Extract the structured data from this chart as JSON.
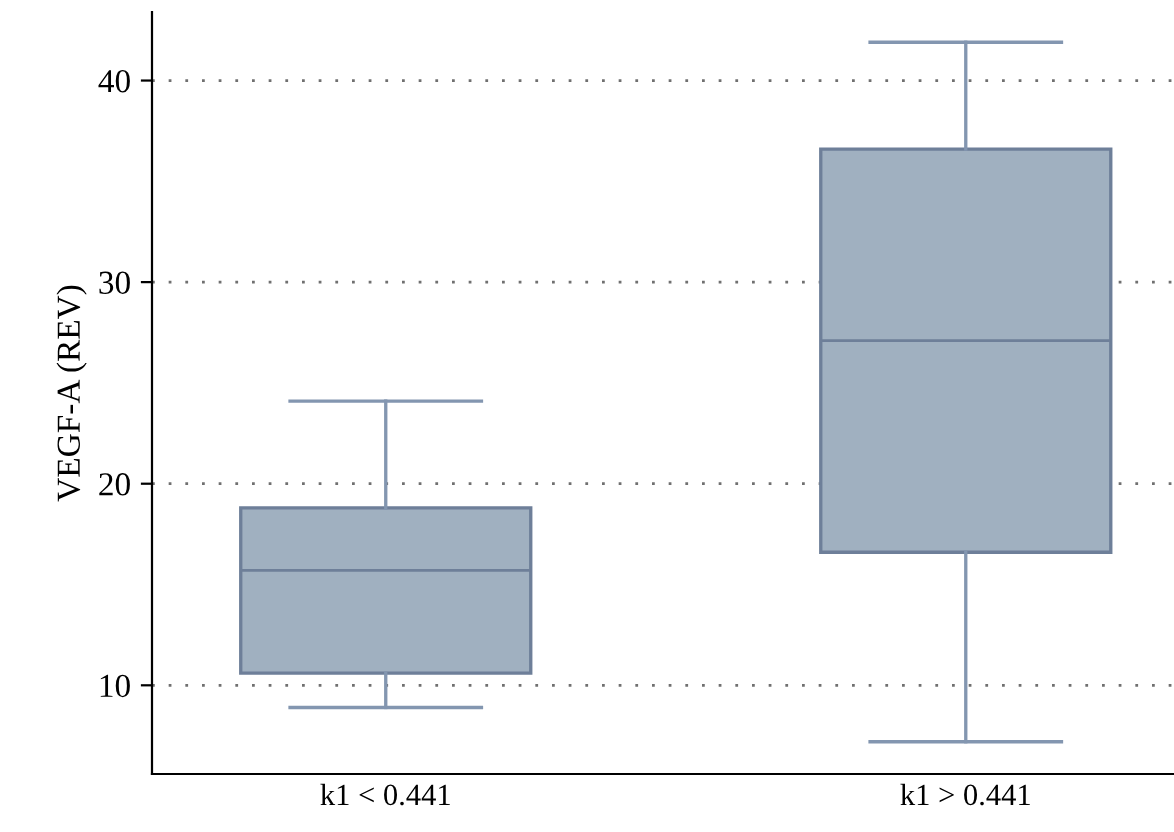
{
  "chart_data": {
    "type": "box",
    "ylabel": "VEGF-A (REV)",
    "categories": [
      "k1 < 0.441",
      "k1 > 0.441"
    ],
    "boxes": [
      {
        "low": 8.9,
        "q1": 10.6,
        "median": 15.7,
        "q3": 18.8,
        "high": 24.1
      },
      {
        "low": 7.2,
        "q1": 16.6,
        "median": 27.1,
        "q3": 36.6,
        "high": 41.9
      }
    ],
    "color": "#a0b0c0",
    "ylim": [
      5.6,
      43.4
    ],
    "yticks": [
      10,
      20,
      30,
      40
    ],
    "grid": "y",
    "line_style": "dotted"
  }
}
